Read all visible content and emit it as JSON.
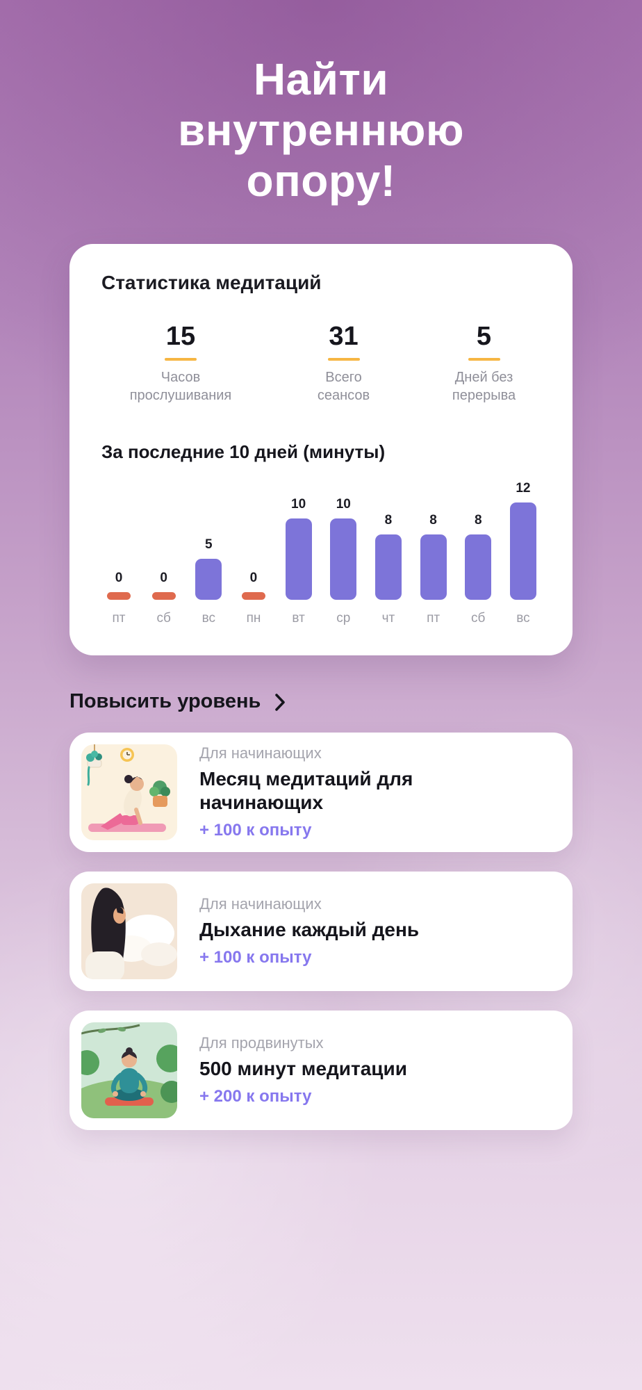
{
  "hero": {
    "title_lines": [
      "Найти",
      "внутреннюю",
      "опору!"
    ]
  },
  "stats_card": {
    "title": "Статистика медитаций",
    "stats": [
      {
        "value": "15",
        "label": "Часов прослушивания"
      },
      {
        "value": "31",
        "label": "Всего сеансов"
      },
      {
        "value": "5",
        "label": "Дней без перерыва"
      }
    ]
  },
  "chart_data": {
    "type": "bar",
    "title": "За последние 10 дней (минуты)",
    "categories": [
      "пт",
      "сб",
      "вс",
      "пн",
      "вт",
      "ср",
      "чт",
      "пт",
      "сб",
      "вс"
    ],
    "values": [
      0,
      0,
      5,
      0,
      10,
      10,
      8,
      8,
      8,
      12
    ],
    "ylim": [
      0,
      12
    ],
    "grid": false,
    "legend": false,
    "bar_color": "#7d74d9",
    "zero_color": "#df6a4e"
  },
  "level_section": {
    "title": "Повысить уровень",
    "chevron_icon": "chevron-right-icon"
  },
  "courses": [
    {
      "tag": "Для начинающих",
      "title": "Месяц медитаций для начинающих",
      "xp": "+ 100 к опыту",
      "illustration": "yoga-room"
    },
    {
      "tag": "Для начинающих",
      "title": "Дыхание каждый день",
      "xp": "+ 100 к опыту",
      "illustration": "breathing-woman"
    },
    {
      "tag": "Для продвинутых",
      "title": "500 минут медитации",
      "xp": "+ 200 к опыту",
      "illustration": "outdoor-meditation"
    }
  ],
  "colors": {
    "accent_orange": "#f6b643",
    "bar_purple": "#7d74d9",
    "zero_red": "#df6a4e",
    "xp_purple": "#8677ee",
    "heading_white": "#ffffff",
    "text_dark": "#16161d",
    "text_gray": "#8f8f99"
  }
}
